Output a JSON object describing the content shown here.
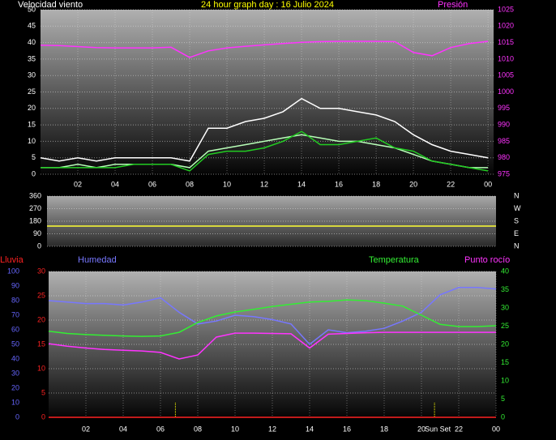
{
  "chart_data": [
    {
      "type": "line",
      "title": "24 hour graph day : 16 Julio 2024",
      "title_color": "#ffff00",
      "y_label": "Velocidad viento",
      "grid": "y",
      "x": [
        0,
        1,
        2,
        3,
        4,
        5,
        6,
        7,
        8,
        9,
        10,
        11,
        12,
        13,
        14,
        15,
        16,
        17,
        18,
        19,
        20,
        21,
        22,
        23,
        24
      ],
      "xlim": [
        0,
        24.3
      ],
      "xticks": [
        {
          "value": 2,
          "label": "02"
        },
        {
          "value": 4,
          "label": "04"
        },
        {
          "value": 6,
          "label": "06"
        },
        {
          "value": 8,
          "label": "08"
        },
        10,
        12,
        14,
        16,
        18,
        20,
        22,
        {
          "value": 24,
          "label": "00"
        }
      ],
      "ylim": [
        0,
        50
      ],
      "yticks": [
        0,
        5,
        10,
        15,
        20,
        25,
        30,
        35,
        40,
        45,
        50
      ],
      "y_color": "#ffffff",
      "y2lim": [
        975,
        1025
      ],
      "y2ticks": [
        975,
        980,
        985,
        990,
        995,
        1000,
        1005,
        1010,
        1015,
        1020,
        1025
      ],
      "y2_color": "#ff33ff",
      "series": [
        {
          "color": "#ffffff",
          "values": [
            5,
            4,
            5,
            4,
            5,
            5,
            5,
            5,
            4,
            14,
            14,
            16,
            17,
            19,
            23,
            20,
            20,
            19,
            18,
            16,
            12,
            9,
            7,
            6,
            5
          ]
        },
        {
          "color": "#b8ffb8",
          "values": [
            2,
            2,
            3,
            2,
            3,
            3,
            3,
            3,
            2,
            7,
            8,
            9,
            10,
            11,
            12,
            11,
            10,
            10,
            9,
            8,
            6,
            4,
            3,
            2,
            2
          ]
        },
        {
          "color": "#22cc22",
          "values": [
            2,
            2,
            2,
            2,
            2,
            3,
            3,
            3,
            1,
            6,
            7,
            7,
            8,
            10,
            13,
            9,
            9,
            10,
            11,
            8,
            7,
            4,
            3,
            2,
            1
          ]
        },
        {
          "name": "Presión",
          "color": "#ff33ff",
          "axis": "y2",
          "values": [
            1014.2,
            1014.1,
            1013.8,
            1013.5,
            1013.4,
            1013.4,
            1013.4,
            1013.6,
            1010.5,
            1012.5,
            1013.4,
            1013.9,
            1014.3,
            1014.7,
            1015.1,
            1015.3,
            1015.4,
            1015.4,
            1015.4,
            1015.3,
            1012,
            1011,
            1013.5,
            1014.7,
            1015.4
          ]
        }
      ]
    },
    {
      "type": "line",
      "grid": "y",
      "x": [
        0,
        1,
        2,
        3,
        4,
        5,
        6,
        7,
        8,
        9,
        10,
        11,
        12,
        13,
        14,
        15,
        16,
        17,
        18,
        19,
        20,
        21,
        22,
        23,
        24
      ],
      "xlim": [
        0,
        24
      ],
      "ylim": [
        0,
        360
      ],
      "yticks": [
        0,
        90,
        180,
        270,
        360
      ],
      "y_color": "#ffffff",
      "y2lim": [
        0,
        360
      ],
      "y2ticks": [
        {
          "value": 0,
          "label": "N"
        },
        {
          "value": 90,
          "label": "E"
        },
        {
          "value": 180,
          "label": "S"
        },
        {
          "value": 270,
          "label": "W"
        },
        {
          "value": 360,
          "label": "N"
        }
      ],
      "y2_color": "#ffffff",
      "series": [
        {
          "color": "#ffff33",
          "values": [
            145,
            145,
            145,
            145,
            145,
            145,
            145,
            145,
            145,
            145,
            145,
            145,
            145,
            145,
            145,
            145,
            145,
            145,
            145,
            145,
            145,
            145,
            145,
            145,
            145
          ]
        }
      ]
    },
    {
      "type": "line",
      "grid": "y3",
      "x": [
        0,
        1,
        2,
        3,
        4,
        5,
        6,
        7,
        8,
        9,
        10,
        11,
        12,
        13,
        14,
        15,
        16,
        17,
        18,
        19,
        20,
        21,
        22,
        23,
        24
      ],
      "xlim": [
        0,
        24
      ],
      "xticks": [
        {
          "value": 2,
          "label": "02"
        },
        {
          "value": 4,
          "label": "04"
        },
        {
          "value": 6,
          "label": "06"
        },
        {
          "value": 8,
          "label": "08"
        },
        10,
        12,
        14,
        16,
        18,
        20,
        22,
        {
          "value": 24,
          "label": "00"
        }
      ],
      "ylim": [
        0,
        100
      ],
      "yticks": [
        0,
        10,
        20,
        30,
        40,
        50,
        60,
        70,
        80,
        90,
        100
      ],
      "y_color": "#6666ff",
      "y3lim": [
        0,
        30
      ],
      "y3ticks": [
        0,
        5,
        10,
        15,
        20,
        25,
        30
      ],
      "y3_color": "#ff2222",
      "y2lim": [
        0,
        40
      ],
      "y2ticks": [
        0,
        5,
        10,
        15,
        20,
        25,
        30,
        35,
        40
      ],
      "y2_color": "#33ee33",
      "sun_lines": [
        {
          "x": 6.8
        },
        {
          "x": 20.7,
          "label": "Sun Set"
        }
      ],
      "series": [
        {
          "name": "Lluvia",
          "color": "#ff2222",
          "axis": "y3",
          "values": [
            0,
            0,
            0,
            0,
            0,
            0,
            0,
            0,
            0,
            0,
            0,
            0,
            0,
            0,
            0,
            0,
            0,
            0,
            0,
            0,
            0,
            0,
            0,
            0,
            0
          ]
        },
        {
          "name": "Humedad",
          "color": "#7777ff",
          "values": [
            80,
            79,
            78,
            78,
            77,
            79,
            82,
            72,
            64,
            66,
            70,
            69,
            67,
            64,
            50,
            60,
            58,
            59,
            61,
            66,
            72,
            84,
            89,
            89,
            88
          ]
        },
        {
          "name": "Temperatura",
          "color": "#33ee33",
          "axis": "y2",
          "values": [
            23.6,
            23,
            22.7,
            22.5,
            22.3,
            22.2,
            22.3,
            23.3,
            26,
            27.8,
            28.9,
            29.6,
            30.4,
            31,
            31.6,
            31.8,
            32.2,
            32,
            31.3,
            30.5,
            28,
            25.5,
            24.9,
            24.9,
            25.1
          ]
        },
        {
          "name": "Punto rocío",
          "color": "#ff33ff",
          "axis": "y2",
          "values": [
            20.2,
            19.5,
            19,
            18.6,
            18.4,
            18.2,
            17.8,
            16,
            17.1,
            22,
            23.1,
            23.1,
            23,
            22.9,
            19,
            22.8,
            23,
            23.2,
            23.3,
            23.3,
            23.3,
            23.3,
            23.3,
            23.3,
            23.3
          ]
        }
      ]
    }
  ]
}
